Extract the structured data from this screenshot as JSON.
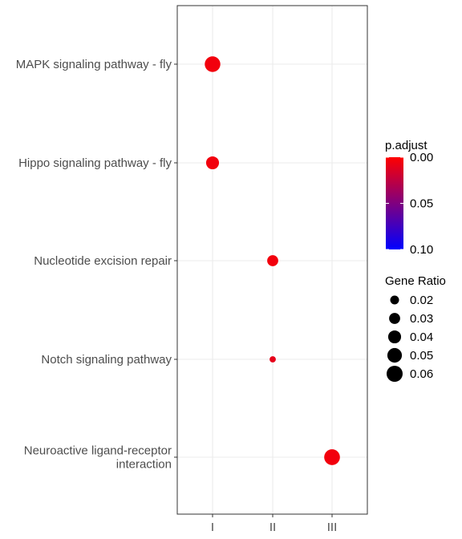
{
  "chart_data": {
    "type": "scatter",
    "x_categories": [
      "I",
      "II",
      "III"
    ],
    "y_categories": [
      "MAPK signaling pathway - fly",
      "Hippo signaling pathway - fly",
      "Nucleotide excision repair",
      "Notch signaling pathway",
      "Neuroactive ligand-receptor interaction"
    ],
    "points": [
      {
        "x": "I",
        "y": "MAPK signaling pathway - fly",
        "gene_ratio": 0.057,
        "p_adjust": 0.005
      },
      {
        "x": "I",
        "y": "Hippo signaling pathway - fly",
        "gene_ratio": 0.04,
        "p_adjust": 0.005
      },
      {
        "x": "II",
        "y": "Nucleotide excision repair",
        "gene_ratio": 0.03,
        "p_adjust": 0.005
      },
      {
        "x": "II",
        "y": "Notch signaling pathway",
        "gene_ratio": 0.011,
        "p_adjust": 0.01
      },
      {
        "x": "III",
        "y": "Neuroactive ligand-receptor interaction",
        "gene_ratio": 0.058,
        "p_adjust": 0.005
      }
    ],
    "color_legend": {
      "title": "p.adjust",
      "labels": [
        "0.00",
        "0.05",
        "0.10"
      ],
      "values": [
        0.0,
        0.05,
        0.1
      ],
      "low_color": "#ff0000",
      "high_color": "#0000ff"
    },
    "size_legend": {
      "title": "Gene Ratio",
      "labels": [
        "0.02",
        "0.03",
        "0.04",
        "0.05",
        "0.06"
      ],
      "values": [
        0.02,
        0.03,
        0.04,
        0.05,
        0.06
      ]
    },
    "grid": true,
    "legend_position": "right"
  }
}
